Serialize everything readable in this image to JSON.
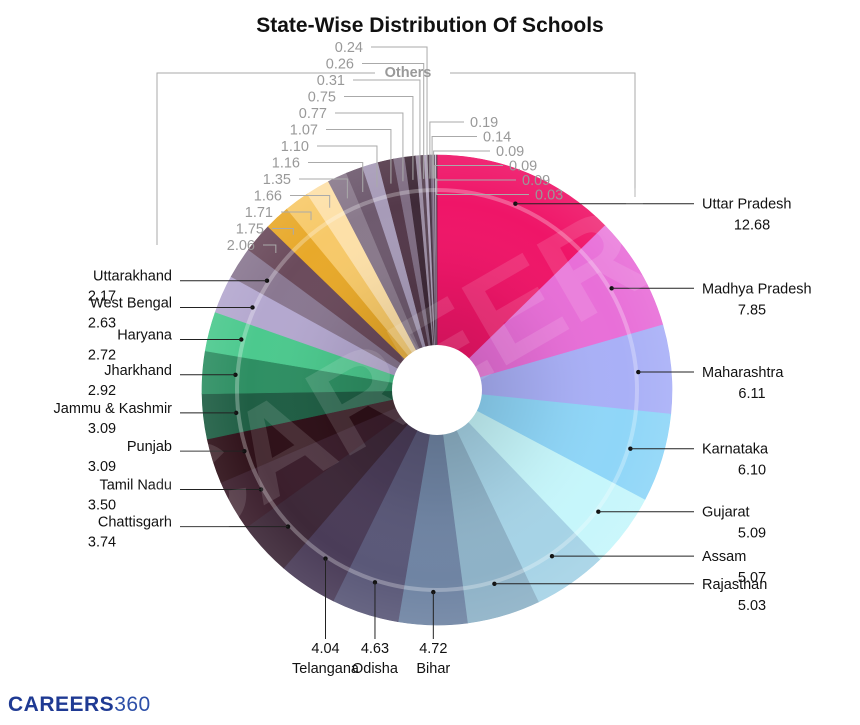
{
  "chart_data": {
    "type": "pie",
    "title": "State-Wise Distribution Of Schools",
    "group_label": "Others",
    "slices": [
      {
        "label": "Uttar Pradesh",
        "value": 12.68,
        "color": "#ef1568"
      },
      {
        "label": "Madhya Pradesh",
        "value": 7.85,
        "color": "#e86fd8"
      },
      {
        "label": "Maharashtra",
        "value": 6.11,
        "color": "#a9b0f7"
      },
      {
        "label": "Karnataka",
        "value": 6.1,
        "color": "#8fd6f8"
      },
      {
        "label": "Gujarat",
        "value": 5.09,
        "color": "#c6f6fb"
      },
      {
        "label": "Assam",
        "value": 5.07,
        "color": "#a6d3e6"
      },
      {
        "label": "Rajasthan",
        "value": 5.03,
        "color": "#8eb2c7"
      },
      {
        "label": "Bihar",
        "value": 4.72,
        "color": "#6f84a3"
      },
      {
        "label": "Odisha",
        "value": 4.63,
        "color": "#5a5878"
      },
      {
        "label": "Telangana",
        "value": 4.04,
        "color": "#4a3c58"
      },
      {
        "label": "Chattisgarh",
        "value": 3.74,
        "color": "#3d2838"
      },
      {
        "label": "Tamil Nadu",
        "value": 3.5,
        "color": "#3b1e2c"
      },
      {
        "label": "Punjab",
        "value": 3.09,
        "color": "#2e1018"
      },
      {
        "label": "Jammu & Kashmir",
        "value": 3.09,
        "color": "#1f5e44"
      },
      {
        "label": "Jharkhand",
        "value": 2.92,
        "color": "#2e8f63"
      },
      {
        "label": "Haryana",
        "value": 2.72,
        "color": "#4cc98e"
      },
      {
        "label": "West Bengal",
        "value": 2.63,
        "color": "#b4a8cf"
      },
      {
        "label": "Uttarakhand",
        "value": 2.17,
        "color": "#8a7891"
      },
      {
        "label": "",
        "value": 2.06,
        "color": "#6b4b5c"
      },
      {
        "label": "",
        "value": 1.75,
        "color": "#e8a92a"
      },
      {
        "label": "",
        "value": 1.71,
        "color": "#f7c969"
      },
      {
        "label": "",
        "value": 1.66,
        "color": "#fde0a8"
      },
      {
        "label": "",
        "value": 1.35,
        "color": "#8a7a8c"
      },
      {
        "label": "",
        "value": 1.16,
        "color": "#6e5a6e"
      },
      {
        "label": "",
        "value": 1.1,
        "color": "#a79bb8"
      },
      {
        "label": "",
        "value": 1.07,
        "color": "#54394a"
      },
      {
        "label": "",
        "value": 0.77,
        "color": "#7f6d83"
      },
      {
        "label": "",
        "value": 0.75,
        "color": "#3f2a38"
      },
      {
        "label": "",
        "value": 0.31,
        "color": "#9c8ea4"
      },
      {
        "label": "",
        "value": 0.26,
        "color": "#5c4756"
      },
      {
        "label": "",
        "value": 0.24,
        "color": "#b0a2bc"
      },
      {
        "label": "",
        "value": 0.19,
        "color": "#4d3848"
      },
      {
        "label": "",
        "value": 0.14,
        "color": "#7c6a80"
      },
      {
        "label": "",
        "value": 0.09,
        "color": "#9a8aa0"
      },
      {
        "label": "",
        "value": 0.09,
        "color": "#604b5e"
      },
      {
        "label": "",
        "value": 0.09,
        "color": "#c9bcd0"
      },
      {
        "label": "",
        "value": 0.03,
        "color": "#3a2533"
      }
    ]
  },
  "branding": {
    "name": "CAREERS",
    "number": "360",
    "color": "#1f3a93"
  }
}
